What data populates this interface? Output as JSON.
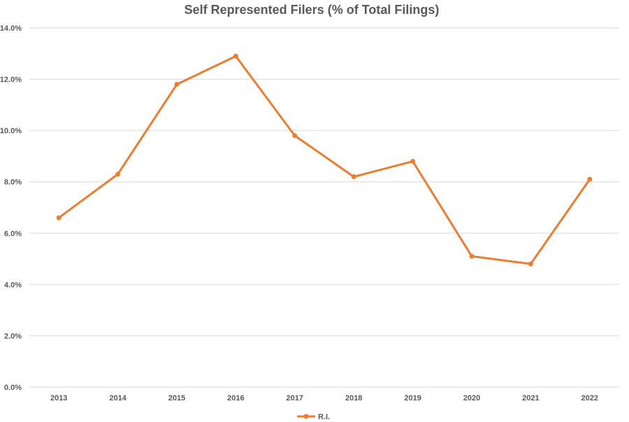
{
  "chart_data": {
    "type": "line",
    "title": "Self Represented Filers (% of Total Filings)",
    "xlabel": "",
    "ylabel": "",
    "categories": [
      "2013",
      "2014",
      "2015",
      "2016",
      "2017",
      "2018",
      "2019",
      "2020",
      "2021",
      "2022"
    ],
    "series": [
      {
        "name": "R.I.",
        "color": "#ED7D31",
        "values": [
          6.6,
          8.3,
          11.8,
          12.9,
          9.8,
          8.2,
          8.8,
          5.1,
          4.8,
          8.1
        ]
      }
    ],
    "ylim": [
      0,
      14
    ],
    "yticks": [
      "0.0%",
      "2.0%",
      "4.0%",
      "6.0%",
      "8.0%",
      "10.0%",
      "12.0%",
      "14.0%"
    ],
    "grid": true,
    "legend": "bottom"
  }
}
